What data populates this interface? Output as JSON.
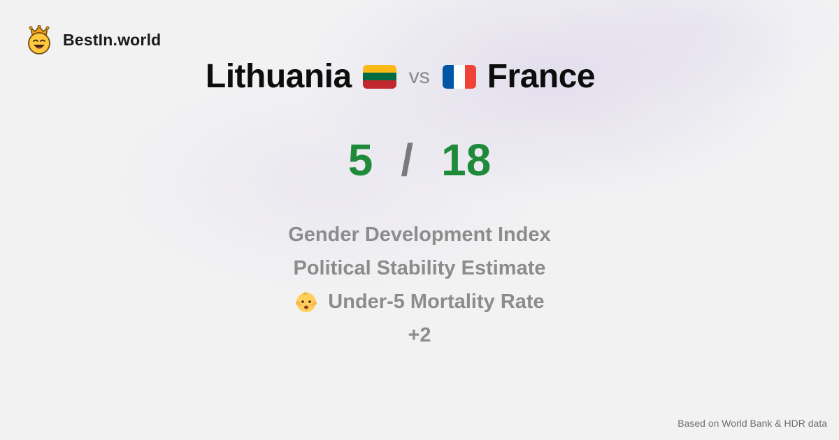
{
  "brand": {
    "name": "BestIn.world",
    "icon": "crowned-smiley-icon"
  },
  "comparison": {
    "left_country": "Lithuania",
    "left_flag": "lithuania-flag-icon",
    "separator": "vs",
    "right_country": "France",
    "right_flag": "france-flag-icon"
  },
  "scores": {
    "left": "5",
    "separator": "/",
    "right": "18",
    "color": "#1e8a3a"
  },
  "metrics": [
    {
      "label": "Gender Development Index"
    },
    {
      "label": "Political Stability Estimate"
    },
    {
      "label": "Under-5 Mortality Rate",
      "icon": "baby-face-icon"
    }
  ],
  "more": "+2",
  "footer": "Based on World Bank & HDR data",
  "colors": {
    "lithuania": [
      "#FDB913",
      "#006A44",
      "#C1272D"
    ],
    "france": [
      "#0055A4",
      "#FFFFFF",
      "#EF4135"
    ]
  }
}
